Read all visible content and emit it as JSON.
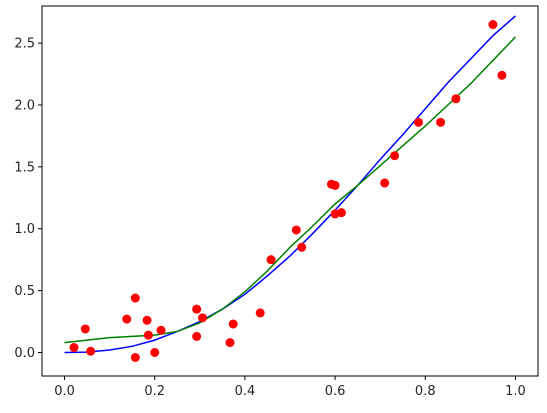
{
  "chart_data": {
    "type": "scatter",
    "title": "",
    "xlabel": "",
    "ylabel": "",
    "xlim": [
      -0.05,
      1.05
    ],
    "ylim": [
      -0.19,
      2.8
    ],
    "grid": false,
    "x_ticks": [
      0.0,
      0.2,
      0.4,
      0.6,
      0.8,
      1.0
    ],
    "x_tick_labels": [
      "0.0",
      "0.2",
      "0.4",
      "0.6",
      "0.8",
      "1.0"
    ],
    "y_ticks": [
      0.0,
      0.5,
      1.0,
      1.5,
      2.0,
      2.5
    ],
    "y_tick_labels": [
      "0.0",
      "0.5",
      "1.0",
      "1.5",
      "2.0",
      "2.5"
    ],
    "colors": {
      "points": "#ff0000",
      "curve_blue": "#0000ff",
      "curve_green": "#008000",
      "axes": "#000000"
    },
    "series": [
      {
        "type": "scatter",
        "color": "#ff0000",
        "points": [
          [
            0.021,
            0.04
          ],
          [
            0.046,
            0.19
          ],
          [
            0.058,
            0.01
          ],
          [
            0.138,
            0.27
          ],
          [
            0.157,
            0.44
          ],
          [
            0.157,
            -0.04
          ],
          [
            0.183,
            0.26
          ],
          [
            0.186,
            0.14
          ],
          [
            0.2,
            0.0
          ],
          [
            0.214,
            0.18
          ],
          [
            0.293,
            0.35
          ],
          [
            0.293,
            0.13
          ],
          [
            0.306,
            0.28
          ],
          [
            0.367,
            0.08
          ],
          [
            0.374,
            0.23
          ],
          [
            0.434,
            0.32
          ],
          [
            0.458,
            0.75
          ],
          [
            0.514,
            0.99
          ],
          [
            0.526,
            0.85
          ],
          [
            0.592,
            1.36
          ],
          [
            0.6,
            1.35
          ],
          [
            0.6,
            1.12
          ],
          [
            0.614,
            1.13
          ],
          [
            0.71,
            1.37
          ],
          [
            0.732,
            1.59
          ],
          [
            0.785,
            1.86
          ],
          [
            0.834,
            1.86
          ],
          [
            0.868,
            2.05
          ],
          [
            0.95,
            2.65
          ],
          [
            0.97,
            2.24
          ]
        ]
      },
      {
        "type": "line",
        "color": "#0000ff",
        "x": [
          0.0,
          0.05,
          0.1,
          0.15,
          0.2,
          0.25,
          0.3,
          0.35,
          0.4,
          0.45,
          0.5,
          0.55,
          0.6,
          0.65,
          0.7,
          0.75,
          0.8,
          0.85,
          0.9,
          0.95,
          1.0
        ],
        "y": [
          0.0,
          0.003,
          0.02,
          0.05,
          0.1,
          0.17,
          0.25,
          0.35,
          0.47,
          0.62,
          0.78,
          0.96,
          1.15,
          1.35,
          1.56,
          1.76,
          1.97,
          2.18,
          2.37,
          2.56,
          2.72
        ]
      },
      {
        "type": "line",
        "color": "#008000",
        "x": [
          0.0,
          0.05,
          0.1,
          0.15,
          0.2,
          0.25,
          0.3,
          0.35,
          0.4,
          0.45,
          0.5,
          0.55,
          0.6,
          0.65,
          0.7,
          0.75,
          0.8,
          0.85,
          0.9,
          0.95,
          1.0
        ],
        "y": [
          0.08,
          0.1,
          0.12,
          0.13,
          0.14,
          0.17,
          0.24,
          0.35,
          0.49,
          0.66,
          0.85,
          1.02,
          1.2,
          1.35,
          1.51,
          1.67,
          1.83,
          2.0,
          2.17,
          2.36,
          2.55
        ]
      }
    ]
  }
}
